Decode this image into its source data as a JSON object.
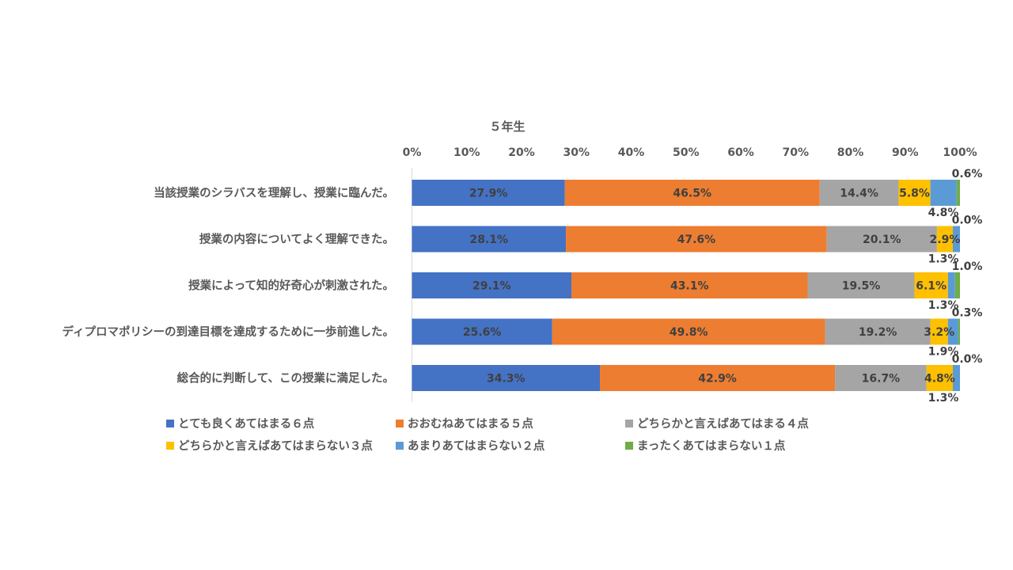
{
  "chart_data": {
    "type": "bar",
    "orientation": "horizontal",
    "stacked": true,
    "title": "５年生",
    "xlim": [
      0,
      100
    ],
    "x_ticks": [
      "0%",
      "10%",
      "20%",
      "30%",
      "40%",
      "50%",
      "60%",
      "70%",
      "80%",
      "90%",
      "100%"
    ],
    "grid": false,
    "legend_position": "bottom",
    "categories": [
      "当該授業のシラバスを理解し、授業に臨んだ。",
      "授業の内容についてよく理解できた。",
      "授業によって知的好奇心が刺激された。",
      "ディプロマポリシーの到達目標を達成するために一歩前進した。",
      "総合的に判断して、この授業に満足した。"
    ],
    "series": [
      {
        "name": "とても良くあてはまる６点",
        "color": "#4472C4",
        "values": [
          27.9,
          28.1,
          29.1,
          25.6,
          34.3
        ],
        "labels": [
          "27.9%",
          "28.1%",
          "29.1%",
          "25.6%",
          "34.3%"
        ]
      },
      {
        "name": "おおむねあてはまる５点",
        "color": "#ED7D31",
        "values": [
          46.5,
          47.6,
          43.1,
          49.8,
          42.9
        ],
        "labels": [
          "46.5%",
          "47.6%",
          "43.1%",
          "49.8%",
          "42.9%"
        ]
      },
      {
        "name": "どちらかと言えばあてはまる４点",
        "color": "#A5A5A5",
        "values": [
          14.4,
          20.1,
          19.5,
          19.2,
          16.7
        ],
        "labels": [
          "14.4%",
          "20.1%",
          "19.5%",
          "19.2%",
          "16.7%"
        ]
      },
      {
        "name": "どちらかと言えばあてはまらない３点",
        "color": "#FFC000",
        "values": [
          5.8,
          2.9,
          6.1,
          3.2,
          4.8
        ],
        "labels": [
          "5.8%",
          "2.9%",
          "6.1%",
          "3.2%",
          "4.8%"
        ]
      },
      {
        "name": "あまりあてはまらない２点",
        "color": "#5B9BD5",
        "values": [
          4.8,
          1.3,
          1.3,
          1.9,
          1.3
        ],
        "labels": [
          "4.8%",
          "1.3%",
          "1.3%",
          "1.9%",
          "1.3%"
        ]
      },
      {
        "name": "まったくあてはまらない１点",
        "color": "#70AD47",
        "values": [
          0.6,
          0.0,
          1.0,
          0.3,
          0.0
        ],
        "labels": [
          "0.6%",
          "0.0%",
          "1.0%",
          "0.3%",
          "0.0%"
        ]
      }
    ]
  }
}
